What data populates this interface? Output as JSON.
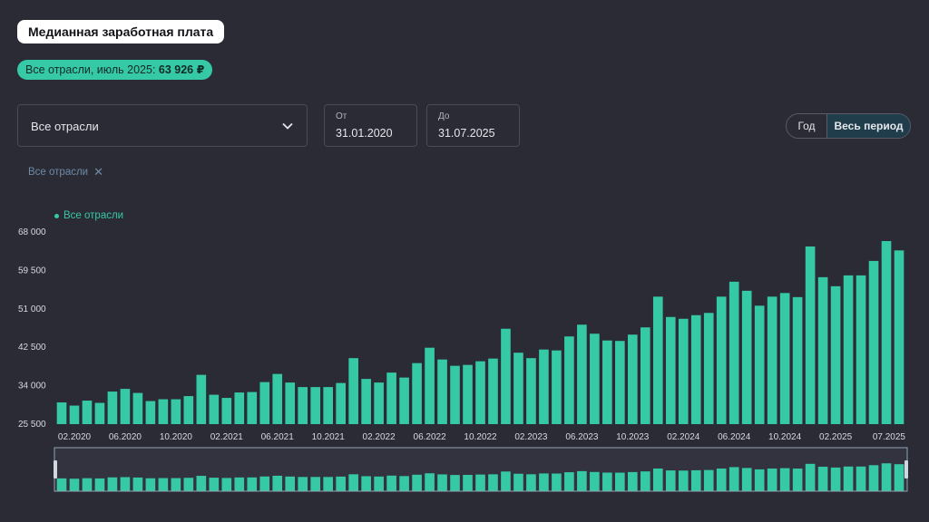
{
  "header": {
    "title": "Медианная заработная плата",
    "summary_prefix": "Все отрасли, июль 2025: ",
    "summary_value": "63 926 ₽"
  },
  "filters": {
    "industry": "Все отрасли",
    "from_label": "От",
    "from_value": "31.01.2020",
    "to_label": "До",
    "to_value": "31.07.2025"
  },
  "period_toggle": {
    "year": "Год",
    "all": "Весь период",
    "selected": "Весь период"
  },
  "chip": {
    "label": "Все отрасли",
    "remove_icon": "close-icon"
  },
  "colors": {
    "background": "#2b2b36",
    "bar": "#36c9a5",
    "accent": "#36c9a5"
  },
  "chart_data": {
    "type": "bar",
    "legend": "Все отрасли",
    "y_ticks": [
      "68 000",
      "59 500",
      "51 000",
      "42 500",
      "34 000",
      "25 500"
    ],
    "ylim": [
      25500,
      68000
    ],
    "x_ticks": [
      "02.2020",
      "06.2020",
      "10.2020",
      "02.2021",
      "06.2021",
      "10.2021",
      "02.2022",
      "06.2022",
      "10.2022",
      "02.2023",
      "06.2023",
      "10.2023",
      "02.2024",
      "06.2024",
      "10.2024",
      "02.2025",
      "07.2025"
    ],
    "series": [
      {
        "name": "Все отрасли",
        "categories": [
          "01.2020",
          "02.2020",
          "03.2020",
          "04.2020",
          "05.2020",
          "06.2020",
          "07.2020",
          "08.2020",
          "09.2020",
          "10.2020",
          "11.2020",
          "12.2020",
          "01.2021",
          "02.2021",
          "03.2021",
          "04.2021",
          "05.2021",
          "06.2021",
          "07.2021",
          "08.2021",
          "09.2021",
          "10.2021",
          "11.2021",
          "12.2021",
          "01.2022",
          "02.2022",
          "03.2022",
          "04.2022",
          "05.2022",
          "06.2022",
          "07.2022",
          "08.2022",
          "09.2022",
          "10.2022",
          "11.2022",
          "12.2022",
          "01.2023",
          "02.2023",
          "03.2023",
          "04.2023",
          "05.2023",
          "06.2023",
          "07.2023",
          "08.2023",
          "09.2023",
          "10.2023",
          "11.2023",
          "12.2023",
          "01.2024",
          "02.2024",
          "03.2024",
          "04.2024",
          "05.2024",
          "06.2024",
          "07.2024",
          "08.2024",
          "09.2024",
          "10.2024",
          "11.2024",
          "12.2024",
          "01.2025",
          "02.2025",
          "03.2025",
          "04.2025",
          "05.2025",
          "06.2025",
          "07.2025"
        ],
        "values": [
          30300,
          29600,
          30700,
          30200,
          32700,
          33300,
          32400,
          30600,
          31000,
          31000,
          31700,
          36400,
          32000,
          31300,
          32500,
          32600,
          34800,
          36600,
          34700,
          33700,
          33700,
          33700,
          34600,
          40100,
          35500,
          34700,
          36900,
          35800,
          39000,
          42400,
          39800,
          38400,
          38600,
          39400,
          40000,
          46600,
          41300,
          40100,
          42000,
          41800,
          44900,
          47500,
          45500,
          44000,
          43900,
          45300,
          46900,
          53700,
          49200,
          48800,
          49600,
          50100,
          53700,
          57000,
          55000,
          51700,
          53700,
          54500,
          53600,
          64800,
          58000,
          56000,
          58400,
          58400,
          61600,
          66000,
          63926
        ]
      }
    ]
  }
}
